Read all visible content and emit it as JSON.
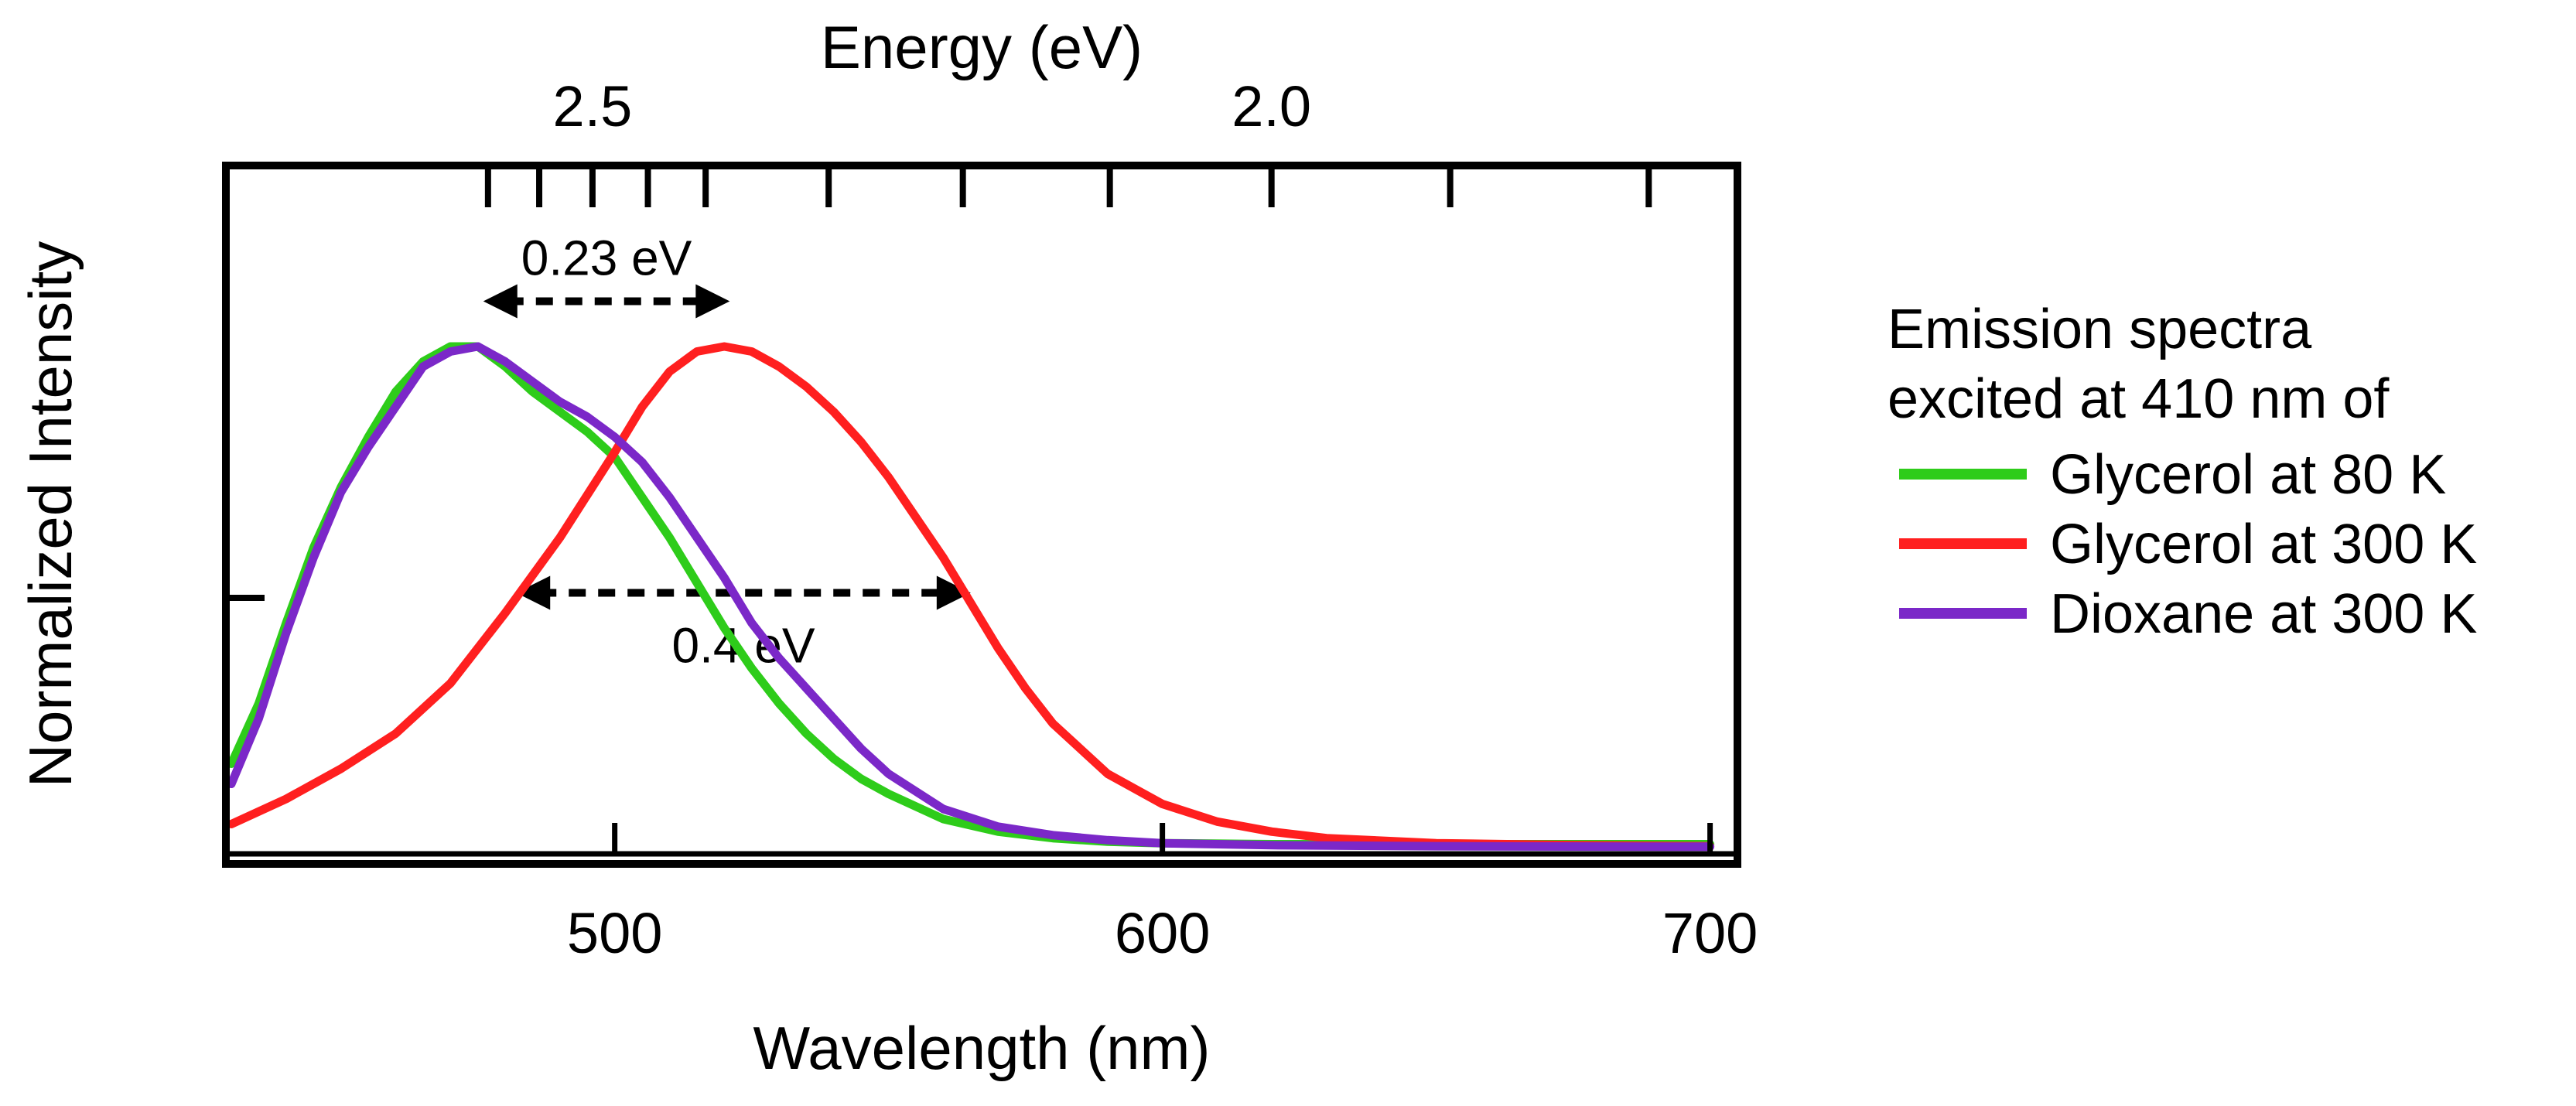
{
  "chart_data": {
    "type": "line",
    "xlabel": "Wavelength (nm)",
    "ylabel": "Normalized Intensity",
    "top_axis_label": "Energy (eV)",
    "xlim": [
      429,
      705
    ],
    "ylim": [
      0,
      1
    ],
    "x_ticks": [
      500,
      600,
      700
    ],
    "x_tick_labels": [
      "500",
      "600",
      "700"
    ],
    "top_ticks_ev": [
      2.6,
      2.55,
      2.5,
      2.45,
      2.4,
      2.3,
      2.2,
      2.1,
      2.0,
      1.9,
      1.8
    ],
    "top_tick_labels": [
      {
        "ev": 2.5,
        "label": "2.5"
      },
      {
        "ev": 2.0,
        "label": "2.0"
      }
    ],
    "y_ticks": [
      0.5
    ],
    "grid": false,
    "legend_title": [
      "Emission spectra",
      "excited at 410 nm of"
    ],
    "legend_position": "right",
    "series": [
      {
        "name": "Glycerol at 80 K",
        "color": "#2ecc1a",
        "x": [
          430,
          435,
          440,
          445,
          450,
          455,
          460,
          465,
          470,
          475,
          480,
          485,
          490,
          495,
          500,
          505,
          510,
          515,
          520,
          525,
          530,
          535,
          540,
          545,
          550,
          560,
          570,
          580,
          590,
          600,
          620,
          650,
          700
        ],
        "y": [
          0.17,
          0.29,
          0.45,
          0.6,
          0.72,
          0.82,
          0.91,
          0.97,
          1.0,
          1.0,
          0.96,
          0.91,
          0.87,
          0.83,
          0.78,
          0.7,
          0.62,
          0.53,
          0.44,
          0.36,
          0.29,
          0.23,
          0.18,
          0.14,
          0.11,
          0.06,
          0.035,
          0.022,
          0.015,
          0.012,
          0.01,
          0.01,
          0.01
        ]
      },
      {
        "name": "Glycerol at 300 K",
        "color": "#ff1f1f",
        "x": [
          430,
          440,
          450,
          460,
          470,
          480,
          490,
          500,
          505,
          510,
          515,
          520,
          525,
          530,
          535,
          540,
          545,
          550,
          555,
          560,
          565,
          570,
          575,
          580,
          590,
          600,
          610,
          620,
          630,
          650,
          675,
          700
        ],
        "y": [
          0.05,
          0.1,
          0.16,
          0.23,
          0.33,
          0.47,
          0.62,
          0.79,
          0.88,
          0.95,
          0.99,
          1.0,
          0.99,
          0.96,
          0.92,
          0.87,
          0.81,
          0.74,
          0.66,
          0.58,
          0.49,
          0.4,
          0.32,
          0.25,
          0.15,
          0.09,
          0.055,
          0.035,
          0.022,
          0.012,
          0.008,
          0.006
        ]
      },
      {
        "name": "Dioxane at 300 K",
        "color": "#7b28c8",
        "x": [
          430,
          435,
          440,
          445,
          450,
          455,
          460,
          465,
          470,
          475,
          480,
          485,
          490,
          495,
          500,
          505,
          510,
          515,
          520,
          525,
          530,
          535,
          540,
          545,
          550,
          560,
          570,
          580,
          590,
          600,
          620,
          650,
          700
        ],
        "y": [
          0.13,
          0.26,
          0.43,
          0.58,
          0.71,
          0.8,
          0.88,
          0.96,
          0.99,
          1.0,
          0.97,
          0.93,
          0.89,
          0.86,
          0.82,
          0.77,
          0.7,
          0.62,
          0.54,
          0.45,
          0.38,
          0.32,
          0.26,
          0.2,
          0.15,
          0.08,
          0.045,
          0.028,
          0.018,
          0.012,
          0.008,
          0.006,
          0.005
        ]
      }
    ],
    "annotations": [
      {
        "text": "0.23 eV",
        "x_start": 476,
        "x_end": 521,
        "y": 1.09
      },
      {
        "text": "0.4 eV",
        "x_start": 482,
        "x_end": 565,
        "y": 0.51
      }
    ]
  }
}
